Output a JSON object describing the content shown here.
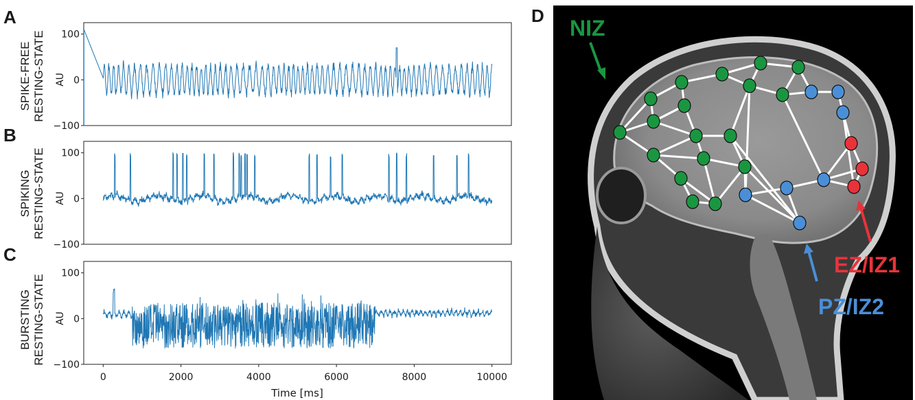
{
  "panel_letters": {
    "a": "A",
    "b": "B",
    "c": "C",
    "d": "D"
  },
  "panels": [
    {
      "label_line1": "SPIKE-FREE",
      "label_line2": "RESTING-STATE",
      "unit": "AU"
    },
    {
      "label_line1": "SPIKING",
      "label_line2": "RESTING-STATE",
      "unit": "AU"
    },
    {
      "label_line1": "BURSTING",
      "label_line2": "RESTING-STATE",
      "unit": "AU"
    }
  ],
  "y_ticks": [
    "100",
    "0",
    "−100"
  ],
  "x_ticks": [
    "0",
    "2000",
    "4000",
    "6000",
    "8000",
    "10000"
  ],
  "xlabel": "Time [ms]",
  "brain": {
    "zones": [
      {
        "label": "NIZ",
        "color": "#1a9641"
      },
      {
        "label": "EZ/IZ1",
        "color": "#e8333a"
      },
      {
        "label": "PZ/IZ2",
        "color": "#4a8fd6"
      }
    ]
  },
  "chart_data": [
    {
      "type": "line",
      "title": "SPIKE-FREE RESTING-STATE",
      "xlabel": "Time [ms]",
      "ylabel": "AU",
      "xlim": [
        -500,
        10500
      ],
      "ylim": [
        -100,
        125
      ],
      "yticks": [
        -100,
        0,
        100
      ],
      "xticks": [
        0,
        2000,
        4000,
        6000,
        8000,
        10000
      ],
      "series": [
        {
          "color": "#1f77b4",
          "style": "noisy oscillation, amplitude approx ±40, max approx 70 near 7500 ms, initial transient near -100 at 0 ms"
        }
      ]
    },
    {
      "type": "line",
      "title": "SPIKING RESTING-STATE",
      "xlabel": "Time [ms]",
      "ylabel": "AU",
      "xlim": [
        -500,
        10500
      ],
      "ylim": [
        -100,
        125
      ],
      "yticks": [
        -100,
        0,
        100
      ],
      "xticks": [
        0,
        2000,
        4000,
        6000,
        8000,
        10000
      ],
      "baseline": 0,
      "spike_times_ms": [
        300,
        700,
        1800,
        1900,
        2050,
        2150,
        2600,
        2850,
        3350,
        3500,
        3550,
        3650,
        3700,
        3900,
        5300,
        5500,
        5850,
        6150,
        7350,
        7550,
        7800,
        8500,
        9100,
        9400
      ],
      "spike_peak": 100,
      "series": [
        {
          "color": "#1f77b4",
          "style": "low-amplitude noise around 0 with sharp spikes to approx 100"
        }
      ]
    },
    {
      "type": "line",
      "title": "BURSTING RESTING-STATE",
      "xlabel": "Time [ms]",
      "ylabel": "AU",
      "xlim": [
        -500,
        10500
      ],
      "ylim": [
        -100,
        125
      ],
      "yticks": [
        -100,
        0,
        100
      ],
      "xticks": [
        0,
        2000,
        4000,
        6000,
        8000,
        10000
      ],
      "bursting_interval_ms": [
        750,
        7000
      ],
      "series": [
        {
          "color": "#1f77b4",
          "style": "small oscillations near 0 before 750 ms, dense burst between -65 and 40 until 7000 ms, then small oscillations near 10"
        }
      ]
    }
  ]
}
